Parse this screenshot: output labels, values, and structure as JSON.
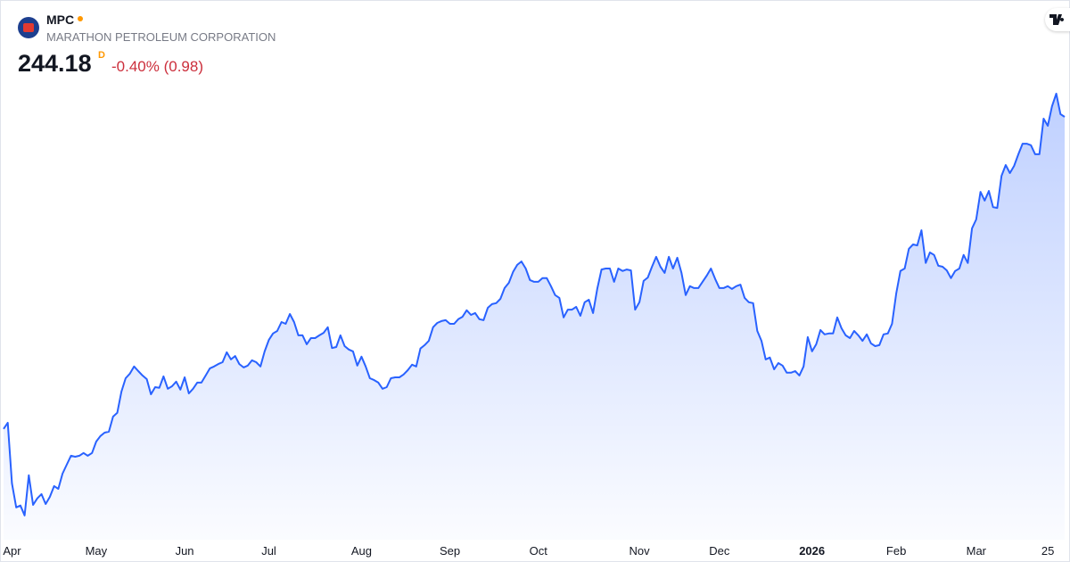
{
  "header": {
    "ticker": "MPC",
    "company": "MARATHON PETROLEUM CORPORATION",
    "price": "244.18",
    "interval": "D",
    "change": "-0.40% (0.98)"
  },
  "chart_data": {
    "type": "area",
    "color": "#2962ff",
    "values": [
      143.2,
      145.2,
      125.6,
      117.8,
      118.4,
      115.2,
      128.2,
      118.6,
      120.7,
      122.1,
      118.9,
      121.2,
      124.7,
      123.8,
      128.7,
      131.6,
      134.5,
      134.2,
      134.5,
      135.4,
      134.5,
      135.4,
      139.1,
      140.9,
      142.0,
      142.3,
      147.2,
      148.4,
      155.3,
      159.6,
      161.1,
      163.4,
      161.9,
      160.5,
      159.3,
      154.4,
      156.7,
      156.5,
      160.2,
      156.2,
      157.0,
      158.5,
      155.9,
      159.9,
      154.7,
      156.2,
      158.2,
      158.2,
      160.5,
      162.8,
      163.4,
      164.2,
      164.8,
      168.0,
      165.7,
      166.8,
      164.2,
      163.1,
      163.7,
      165.4,
      164.8,
      163.4,
      168.3,
      172.0,
      174.1,
      174.9,
      177.8,
      177.2,
      180.4,
      177.8,
      173.5,
      173.5,
      170.6,
      172.6,
      172.6,
      173.5,
      174.3,
      176.1,
      169.4,
      169.7,
      173.5,
      170.0,
      168.9,
      168.3,
      163.7,
      166.6,
      163.4,
      159.6,
      159.0,
      158.2,
      156.2,
      156.7,
      159.6,
      159.9,
      159.9,
      160.8,
      162.2,
      164.0,
      163.4,
      169.2,
      170.3,
      171.7,
      176.1,
      177.5,
      178.1,
      178.4,
      177.2,
      177.2,
      178.7,
      179.5,
      181.6,
      180.1,
      180.7,
      178.7,
      178.4,
      182.4,
      183.6,
      183.9,
      185.3,
      188.8,
      190.5,
      194.0,
      196.3,
      197.4,
      195.1,
      191.4,
      190.8,
      190.8,
      192.0,
      192.0,
      189.4,
      186.5,
      185.6,
      179.3,
      181.8,
      181.8,
      182.7,
      179.8,
      184.2,
      185.0,
      180.7,
      188.5,
      194.8,
      195.1,
      195.1,
      190.8,
      195.1,
      194.3,
      194.8,
      194.5,
      181.8,
      184.2,
      191.1,
      192.2,
      195.7,
      198.9,
      195.7,
      193.7,
      198.9,
      195.1,
      198.6,
      193.7,
      186.5,
      189.4,
      188.8,
      188.8,
      190.8,
      192.8,
      195.1,
      191.7,
      188.8,
      188.8,
      189.4,
      188.5,
      189.4,
      189.9,
      185.6,
      184.2,
      183.9,
      174.9,
      171.7,
      165.7,
      166.3,
      162.5,
      164.5,
      163.7,
      161.4,
      161.4,
      161.9,
      160.5,
      163.4,
      172.9,
      168.3,
      170.6,
      175.2,
      173.8,
      174.1,
      174.1,
      179.3,
      175.8,
      173.5,
      172.6,
      174.9,
      173.5,
      171.7,
      173.8,
      170.9,
      170.0,
      170.3,
      173.8,
      174.1,
      177.2,
      187.0,
      194.3,
      195.1,
      201.5,
      202.9,
      202.6,
      207.5,
      196.9,
      200.3,
      199.5,
      196.0,
      195.7,
      194.5,
      192.0,
      194.3,
      195.1,
      199.5,
      196.9,
      208.1,
      211.0,
      219.9,
      217.1,
      220.2,
      215.0,
      214.7,
      225.1,
      228.6,
      226.0,
      228.3,
      232.1,
      235.5,
      235.5,
      235.0,
      232.1,
      232.1,
      243.6,
      241.3,
      247.6,
      251.7,
      245.1,
      244.18
    ],
    "xlim": [
      0,
      252
    ],
    "xticks": [
      {
        "value": 2,
        "label": "Apr"
      },
      {
        "value": 22,
        "label": "May"
      },
      {
        "value": 43,
        "label": "Jun"
      },
      {
        "value": 63,
        "label": "Jul"
      },
      {
        "value": 85,
        "label": "Aug"
      },
      {
        "value": 106,
        "label": "Sep"
      },
      {
        "value": 127,
        "label": "Oct"
      },
      {
        "value": 151,
        "label": "Nov"
      },
      {
        "value": 170,
        "label": "Dec"
      },
      {
        "value": 192,
        "label": "2026"
      },
      {
        "value": 212,
        "label": "Feb"
      },
      {
        "value": 231,
        "label": "Mar"
      },
      {
        "value": 248,
        "label": "25"
      }
    ],
    "ylim": [
      108.5,
      264.4
    ]
  }
}
